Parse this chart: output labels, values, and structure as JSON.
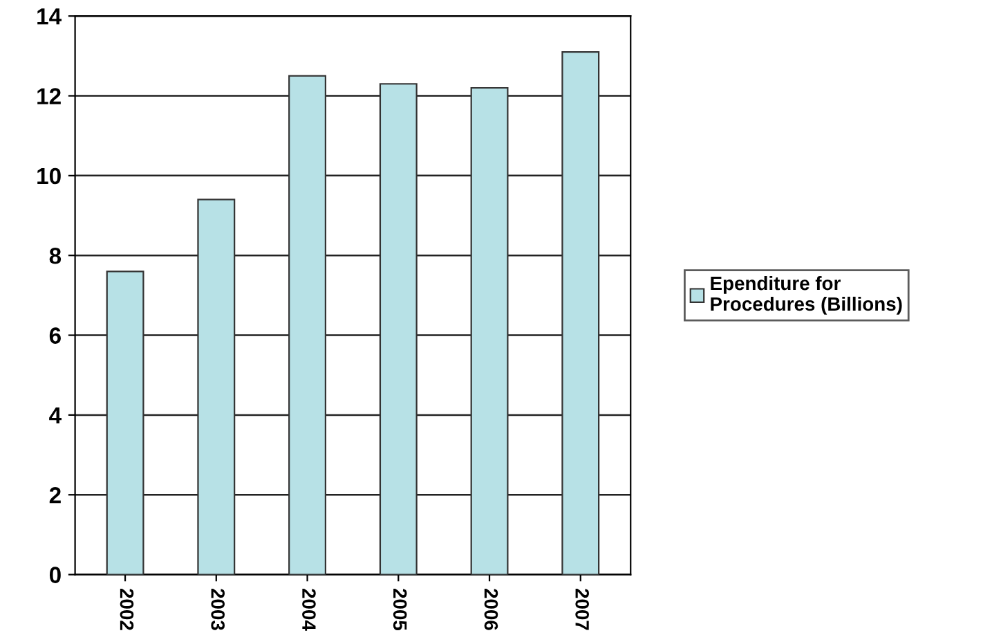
{
  "chart_data": {
    "type": "bar",
    "categories": [
      "2002",
      "2003",
      "2004",
      "2005",
      "2006",
      "2007"
    ],
    "series": [
      {
        "name": "Ependiture for\nProcedures (Billions)",
        "color": "#b7e1e6",
        "values": [
          7.6,
          9.4,
          12.5,
          12.3,
          12.2,
          13.1
        ]
      }
    ],
    "ylim": [
      0,
      14
    ],
    "yticks": [
      0,
      2,
      4,
      6,
      8,
      10,
      12,
      14
    ],
    "grid": "y",
    "legend": "right"
  }
}
